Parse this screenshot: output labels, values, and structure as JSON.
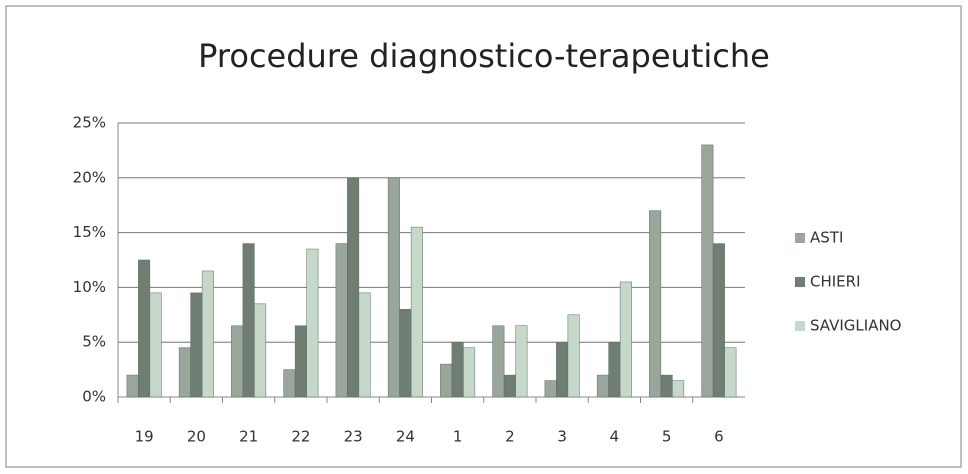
{
  "chart_data": {
    "type": "bar",
    "title": "Procedure diagnostico-terapeutiche",
    "categories": [
      "19",
      "20",
      "21",
      "22",
      "23",
      "24",
      "1",
      "2",
      "3",
      "4",
      "5",
      "6"
    ],
    "series": [
      {
        "name": "ASTI",
        "color": "#9aa69b",
        "values": [
          2,
          4.5,
          6.5,
          2.5,
          14,
          20,
          3,
          6.5,
          1.5,
          2,
          17,
          23
        ]
      },
      {
        "name": "CHIERI",
        "color": "#6f7d72",
        "values": [
          12.5,
          9.5,
          14,
          6.5,
          20,
          8,
          5,
          2,
          5,
          5,
          2,
          14
        ]
      },
      {
        "name": "SAVIGLIANO",
        "color": "#c6d8c9",
        "values": [
          9.5,
          11.5,
          8.5,
          13.5,
          9.5,
          15.5,
          4.5,
          6.5,
          7.5,
          10.5,
          1.5,
          4.5
        ]
      }
    ],
    "ylim": [
      0,
      25
    ],
    "yticks": [
      {
        "value": 0,
        "label": "0%"
      },
      {
        "value": 5,
        "label": "5%"
      },
      {
        "value": 10,
        "label": "10%"
      },
      {
        "value": 15,
        "label": "15%"
      },
      {
        "value": 20,
        "label": "20%"
      },
      {
        "value": 25,
        "label": "25%"
      }
    ],
    "grid": true,
    "legend": "right"
  }
}
